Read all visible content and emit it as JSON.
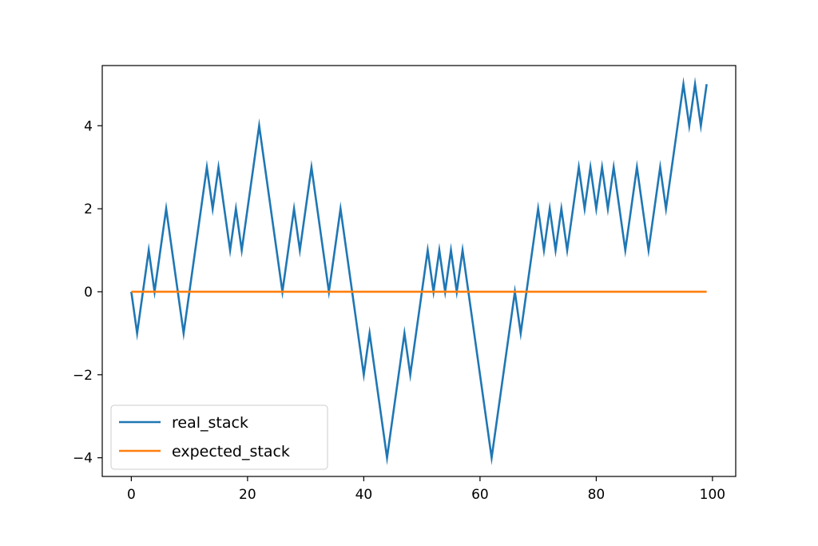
{
  "chart_data": {
    "type": "line",
    "title": "",
    "xlabel": "",
    "ylabel": "",
    "xlim": [
      -5,
      104
    ],
    "ylim": [
      -4.45,
      5.45
    ],
    "xticks": [
      0,
      20,
      40,
      60,
      80,
      100
    ],
    "yticks": [
      -4,
      -2,
      0,
      2,
      4
    ],
    "xtick_labels": [
      "0",
      "20",
      "40",
      "60",
      "80",
      "100"
    ],
    "ytick_labels": [
      "−4",
      "−2",
      "0",
      "2",
      "4"
    ],
    "grid": false,
    "legend_position": "lower-left",
    "x": [
      0,
      1,
      2,
      3,
      4,
      5,
      6,
      7,
      8,
      9,
      10,
      11,
      12,
      13,
      14,
      15,
      16,
      17,
      18,
      19,
      20,
      21,
      22,
      23,
      24,
      25,
      26,
      27,
      28,
      29,
      30,
      31,
      32,
      33,
      34,
      35,
      36,
      37,
      38,
      39,
      40,
      41,
      42,
      43,
      44,
      45,
      46,
      47,
      48,
      49,
      50,
      51,
      52,
      53,
      54,
      55,
      56,
      57,
      58,
      59,
      60,
      61,
      62,
      63,
      64,
      65,
      66,
      67,
      68,
      69,
      70,
      71,
      72,
      73,
      74,
      75,
      76,
      77,
      78,
      79,
      80,
      81,
      82,
      83,
      84,
      85,
      86,
      87,
      88,
      89,
      90,
      91,
      92,
      93,
      94,
      95,
      96,
      97,
      98,
      99
    ],
    "series": [
      {
        "name": "real_stack",
        "color": "#1f77b4",
        "values": [
          0,
          -1,
          0,
          1,
          0,
          1,
          2,
          1,
          0,
          -1,
          0,
          1,
          2,
          3,
          2,
          3,
          2,
          1,
          2,
          1,
          2,
          3,
          4,
          3,
          2,
          1,
          0,
          1,
          2,
          1,
          2,
          3,
          2,
          1,
          0,
          1,
          2,
          1,
          0,
          -1,
          -2,
          -1,
          -2,
          -3,
          -4,
          -3,
          -2,
          -1,
          -2,
          -1,
          0,
          1,
          0,
          1,
          0,
          1,
          0,
          1,
          0,
          -1,
          -2,
          -3,
          -4,
          -3,
          -2,
          -1,
          0,
          -1,
          0,
          1,
          2,
          1,
          2,
          1,
          2,
          1,
          2,
          3,
          2,
          3,
          2,
          3,
          2,
          3,
          2,
          1,
          2,
          3,
          2,
          1,
          2,
          3,
          2,
          3,
          4,
          5,
          4,
          5,
          4,
          5
        ]
      },
      {
        "name": "expected_stack",
        "color": "#ff7f0e",
        "values": [
          0,
          0,
          0,
          0,
          0,
          0,
          0,
          0,
          0,
          0,
          0,
          0,
          0,
          0,
          0,
          0,
          0,
          0,
          0,
          0,
          0,
          0,
          0,
          0,
          0,
          0,
          0,
          0,
          0,
          0,
          0,
          0,
          0,
          0,
          0,
          0,
          0,
          0,
          0,
          0,
          0,
          0,
          0,
          0,
          0,
          0,
          0,
          0,
          0,
          0,
          0,
          0,
          0,
          0,
          0,
          0,
          0,
          0,
          0,
          0,
          0,
          0,
          0,
          0,
          0,
          0,
          0,
          0,
          0,
          0,
          0,
          0,
          0,
          0,
          0,
          0,
          0,
          0,
          0,
          0,
          0,
          0,
          0,
          0,
          0,
          0,
          0,
          0,
          0,
          0,
          0,
          0,
          0,
          0,
          0,
          0,
          0,
          0,
          0,
          0
        ]
      }
    ]
  }
}
